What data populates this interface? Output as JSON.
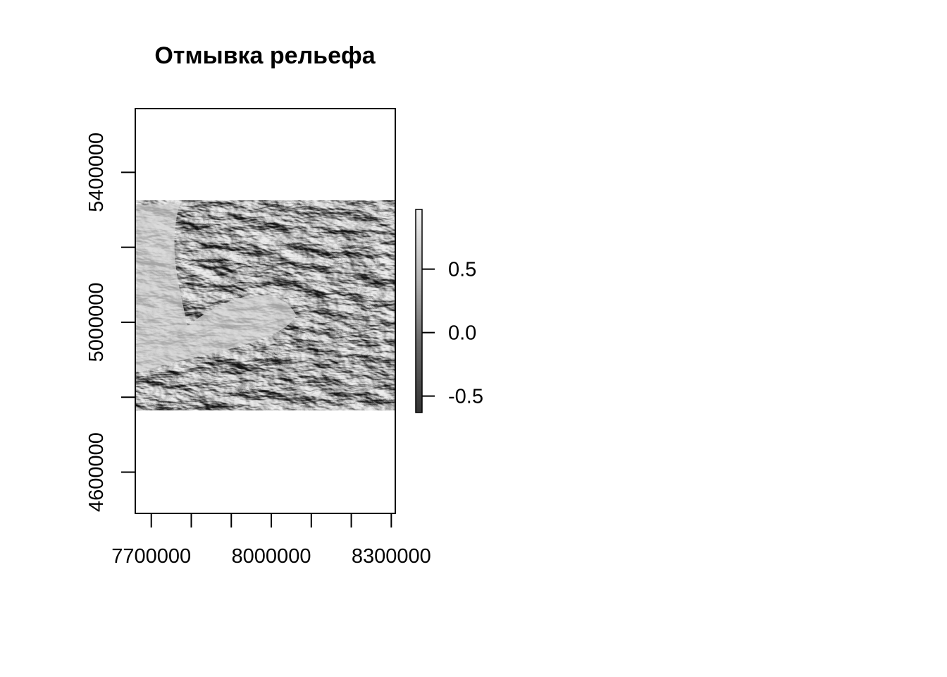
{
  "chart_data": {
    "type": "heatmap",
    "title": "Отмывка рельефа",
    "xlabel": "",
    "ylabel": "",
    "xlim": [
      7660000,
      8310000
    ],
    "ylim": [
      4490000,
      5570000
    ],
    "x_ticks": [
      7700000,
      7800000,
      7900000,
      8000000,
      8100000,
      8200000,
      8300000
    ],
    "x_tick_labels": [
      "7700000",
      "",
      "",
      "8000000",
      "",
      "",
      "8300000"
    ],
    "y_ticks": [
      4600000,
      4800000,
      5000000,
      5200000,
      5400000
    ],
    "y_tick_labels": [
      "4600000",
      "",
      "5000000",
      "",
      "5400000"
    ],
    "raster_extent": {
      "xmin": 7660000,
      "xmax": 8310000,
      "ymin": 4765000,
      "ymax": 5325000
    },
    "legend": {
      "position": "right",
      "range": [
        -0.63,
        0.97
      ],
      "ticks": [
        0.5,
        0.0,
        -0.5
      ],
      "tick_labels": [
        "0.5",
        "0.0",
        "-0.5"
      ],
      "color_low": "#333333",
      "color_high": "#f2f2f2"
    },
    "grid": false
  }
}
